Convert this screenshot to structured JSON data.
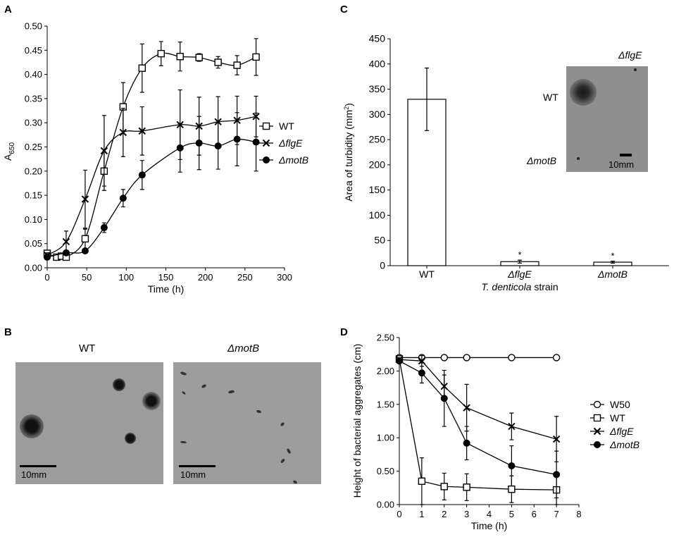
{
  "colors": {
    "ink": "#000000",
    "photo_gray": "#9d9d9d",
    "inset_gray": "#8f8f8f",
    "colony": "#111111"
  },
  "panel_labels": {
    "a": "A",
    "b": "B",
    "c": "C",
    "d": "D"
  },
  "panel_b": {
    "wt_title": "WT",
    "motb_title": "ΔmotB",
    "scale_label": "10mm"
  },
  "inset_c": {
    "wt_label": "WT",
    "flge_label": "ΔflgE",
    "motb_label": "ΔmotB",
    "scale_label": "10mm"
  },
  "chart_data": [
    {
      "id": "A",
      "type": "line",
      "xlabel": "Time (h)",
      "ylabel": "A",
      "ylabel_sub": "650",
      "xlim": [
        0,
        300
      ],
      "ylim": [
        0,
        0.5
      ],
      "xticks": [
        "0",
        "50",
        "100",
        "150",
        "200",
        "250",
        "300"
      ],
      "yticks": [
        "0.00",
        "0.05",
        "0.10",
        "0.15",
        "0.20",
        "0.25",
        "0.30",
        "0.35",
        "0.40",
        "0.45",
        "0.50"
      ],
      "legend_position": "right",
      "series": [
        {
          "name": "WT",
          "marker": "square",
          "x": [
            0,
            12,
            18,
            24,
            48,
            72,
            96,
            120,
            144,
            168,
            192,
            216,
            240,
            264
          ],
          "y": [
            0.03,
            0.022,
            0.024,
            0.022,
            0.06,
            0.2,
            0.333,
            0.413,
            0.443,
            0.437,
            0.435,
            0.425,
            0.419,
            0.436
          ],
          "err": [
            0.005,
            0.004,
            0.004,
            0.004,
            0.02,
            0.04,
            0.05,
            0.05,
            0.025,
            0.03,
            0.008,
            0.012,
            0.02,
            0.038
          ]
        },
        {
          "name": "ΔflgE",
          "marker": "x",
          "x": [
            0,
            24,
            48,
            72,
            96,
            120,
            168,
            192,
            216,
            240,
            264
          ],
          "y": [
            0.026,
            0.054,
            0.142,
            0.242,
            0.28,
            0.283,
            0.296,
            0.293,
            0.302,
            0.305,
            0.313
          ],
          "err": [
            0.005,
            0.022,
            0.06,
            0.073,
            0.05,
            0.05,
            0.072,
            0.06,
            0.052,
            0.05,
            0.042
          ]
        },
        {
          "name": "ΔmotB",
          "marker": "circle",
          "x": [
            0,
            24,
            48,
            72,
            96,
            120,
            168,
            192,
            216,
            240,
            264
          ],
          "y": [
            0.022,
            0.031,
            0.035,
            0.083,
            0.144,
            0.192,
            0.248,
            0.258,
            0.252,
            0.266,
            0.26
          ],
          "err": [
            0.004,
            0.005,
            0.005,
            0.01,
            0.018,
            0.03,
            0.05,
            0.055,
            0.048,
            0.055,
            0.06
          ]
        }
      ]
    },
    {
      "id": "C",
      "type": "bar",
      "xlabel_prefix": "",
      "xlabel_italic": "T. denticola",
      "xlabel_suffix": " strain",
      "ylabel": "Area of turbidity (mm",
      "ylabel_sup": "2",
      "ylabel_close": ")",
      "ylim": [
        0,
        450
      ],
      "yticks": [
        "0",
        "50",
        "100",
        "150",
        "200",
        "250",
        "300",
        "350",
        "400",
        "450"
      ],
      "categories": [
        "WT",
        "ΔflgE",
        "ΔmotB"
      ],
      "values": [
        330,
        8,
        7
      ],
      "err": [
        62,
        3,
        2
      ],
      "annotations": [
        "",
        "*",
        "*"
      ]
    },
    {
      "id": "D",
      "type": "line",
      "xlabel": "Time (h)",
      "ylabel": "Height of bacterial aggregates (cm)",
      "xlim": [
        0,
        8
      ],
      "ylim": [
        0,
        2.5
      ],
      "xticks": [
        "0",
        "1",
        "2",
        "3",
        "4",
        "5",
        "6",
        "7",
        "8"
      ],
      "yticks": [
        "0.00",
        "0.50",
        "1.00",
        "1.50",
        "2.00",
        "2.50"
      ],
      "legend_position": "right",
      "series": [
        {
          "name": "W50",
          "marker": "open-circle",
          "x": [
            0,
            1,
            2,
            3,
            5,
            7
          ],
          "y": [
            2.2,
            2.2,
            2.2,
            2.2,
            2.2,
            2.2
          ],
          "err": [
            0,
            0,
            0,
            0,
            0,
            0
          ]
        },
        {
          "name": "WT",
          "marker": "square",
          "x": [
            0,
            1,
            2,
            3,
            5,
            7
          ],
          "y": [
            2.18,
            0.35,
            0.27,
            0.26,
            0.23,
            0.22
          ],
          "err": [
            0.03,
            0.35,
            0.2,
            0.2,
            0.2,
            0.22
          ]
        },
        {
          "name": "ΔflgE",
          "marker": "x",
          "x": [
            0,
            1,
            2,
            3,
            5,
            7
          ],
          "y": [
            2.17,
            2.15,
            1.77,
            1.45,
            1.17,
            0.98
          ],
          "err": [
            0.03,
            0.08,
            0.17,
            0.35,
            0.2,
            0.34
          ]
        },
        {
          "name": "ΔmotB",
          "marker": "circle",
          "x": [
            0,
            1,
            2,
            3,
            5,
            7
          ],
          "y": [
            2.15,
            1.97,
            1.59,
            0.92,
            0.58,
            0.45
          ],
          "err": [
            0.03,
            0.15,
            0.42,
            0.25,
            0.3,
            0.35
          ]
        }
      ]
    }
  ]
}
